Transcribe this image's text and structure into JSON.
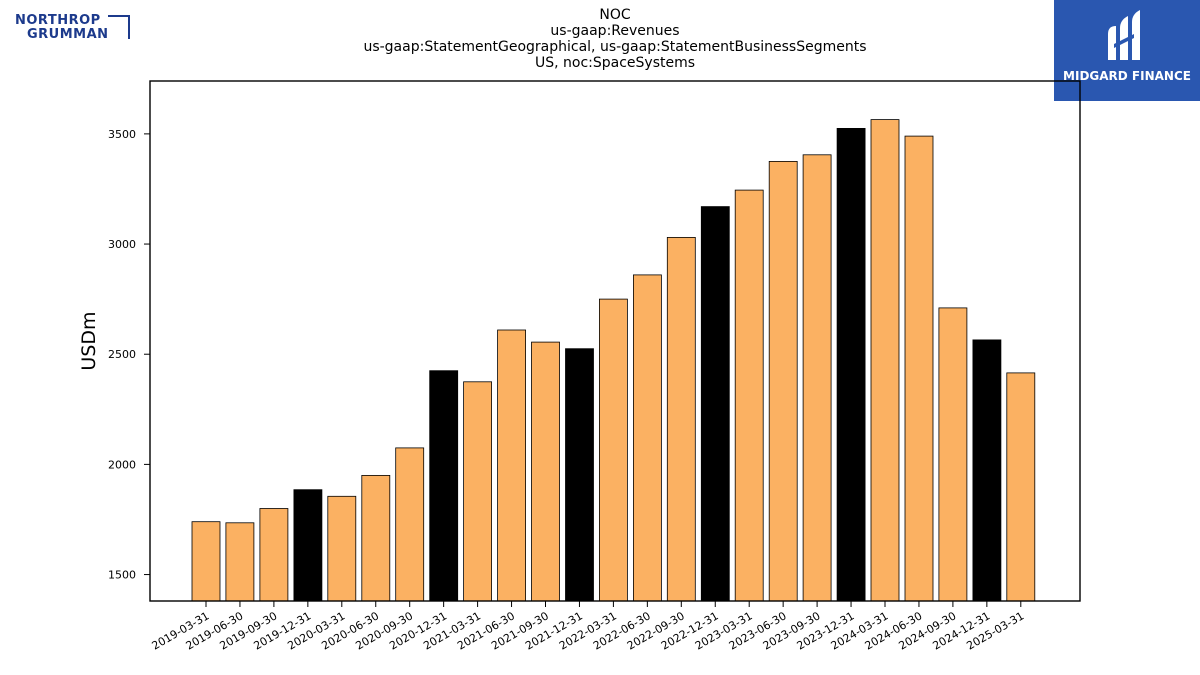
{
  "header": {
    "title_lines": [
      "NOC",
      "us-gaap:Revenues",
      "us-gaap:StatementGeographical, us-gaap:StatementBusinessSegments",
      "US, noc:SpaceSystems"
    ]
  },
  "logos": {
    "left_line1": "NORTHROP",
    "left_line2": "GRUMMAN",
    "right_text": "MIDGARD FINANCE"
  },
  "colors": {
    "quarter_bar": "#fbb162",
    "year_end_bar": "#000000",
    "bar_edge": "#000000",
    "brand_blue": "#2a57b0"
  },
  "chart_data": {
    "type": "bar",
    "ylabel": "USDm",
    "xlabel": "",
    "ylim": [
      1380,
      3740
    ],
    "yticks": [
      1500,
      2000,
      2500,
      3000,
      3500
    ],
    "categories": [
      "2019-03-31",
      "2019-06-30",
      "2019-09-30",
      "2019-12-31",
      "2020-03-31",
      "2020-06-30",
      "2020-09-30",
      "2020-12-31",
      "2021-03-31",
      "2021-06-30",
      "2021-09-30",
      "2021-12-31",
      "2022-03-31",
      "2022-06-30",
      "2022-09-30",
      "2022-12-31",
      "2023-03-31",
      "2023-06-30",
      "2023-09-30",
      "2023-12-31",
      "2024-03-31",
      "2024-06-30",
      "2024-09-30",
      "2024-12-31",
      "2025-03-31"
    ],
    "values": [
      1740,
      1735,
      1800,
      1885,
      1855,
      1950,
      2075,
      2425,
      2375,
      2610,
      2555,
      2525,
      2750,
      2860,
      3030,
      3170,
      3245,
      3375,
      3405,
      3525,
      3565,
      3490,
      2710,
      2565,
      2415
    ],
    "highlight_year_end": true,
    "grid": false
  }
}
